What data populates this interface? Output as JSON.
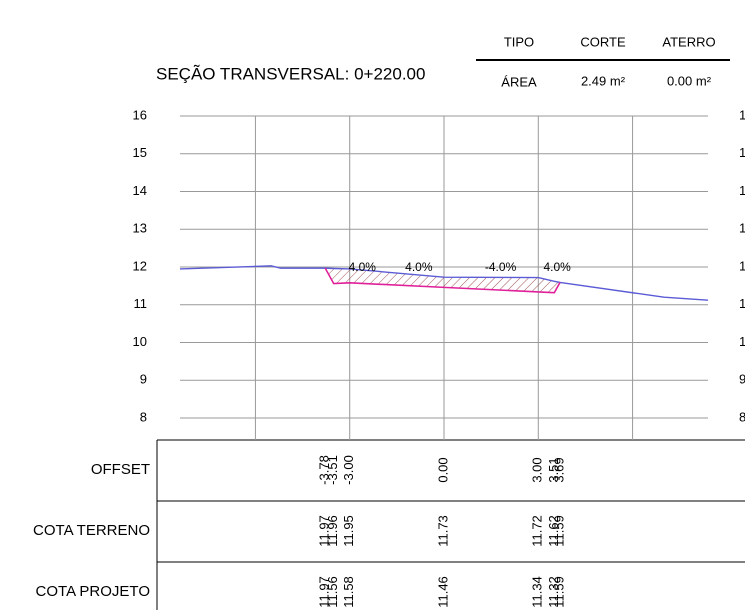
{
  "chart_data": {
    "type": "line",
    "title": "SEÇÃO TRANSVERSAL: 0+220.00",
    "info": {
      "headers": [
        "TIPO",
        "CORTE",
        "ATERRO"
      ],
      "row": [
        "ÁREA",
        "2.49 m²",
        "0.00 m²"
      ]
    },
    "xlim": [
      -8.4,
      8.4
    ],
    "xgrid": [
      -6,
      -3,
      0,
      3,
      6
    ],
    "ylim": [
      8,
      16
    ],
    "yticks": [
      8,
      9,
      10,
      11,
      12,
      13,
      14,
      15,
      16
    ],
    "grid": true,
    "row_labels": [
      "OFFSET",
      "COTA TERRENO",
      "COTA PROJETO"
    ],
    "annotations": [
      "4.0%",
      "4.0%",
      "-4.0%",
      "4.0%"
    ],
    "series": [
      {
        "name": "COTA TERRENO",
        "color": "#5b5bd6",
        "x": [
          -8.4,
          -5.5,
          -5.2,
          -3.78,
          -3.51,
          -3.0,
          0,
          3.0,
          3.51,
          3.69,
          7.0,
          8.4
        ],
        "values": [
          11.95,
          12.03,
          11.97,
          11.97,
          11.96,
          11.95,
          11.73,
          11.72,
          11.62,
          11.59,
          11.2,
          11.12
        ],
        "value_labels": [
          null,
          null,
          null,
          "11.97",
          "11.96",
          "11.95",
          "11.73",
          "11.72",
          "11.62",
          "11.59",
          null,
          null
        ]
      },
      {
        "name": "COTA PROJETO",
        "color": "#e0209a",
        "x": [
          -3.78,
          -3.51,
          -3.0,
          0,
          3.0,
          3.51,
          3.69
        ],
        "x_labels": [
          "-3.78",
          "-3.51",
          "-3.00",
          "0.00",
          "3.00",
          "3.51",
          "3.69"
        ],
        "values": [
          11.97,
          11.56,
          11.58,
          11.46,
          11.34,
          11.32,
          11.59
        ],
        "value_labels": [
          "11.97",
          "11.56",
          "11.58",
          "11.46",
          "11.34",
          "11.32",
          "11.59"
        ]
      }
    ]
  }
}
